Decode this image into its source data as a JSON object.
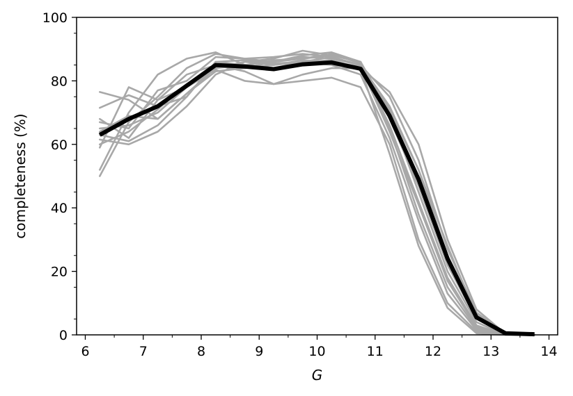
{
  "chart_data": {
    "type": "line",
    "xlabel": "G",
    "ylabel": "completeness (%)",
    "xlim": [
      5.85,
      14.15
    ],
    "ylim": [
      0,
      100
    ],
    "xticks": [
      6,
      7,
      8,
      9,
      10,
      11,
      12,
      13,
      14
    ],
    "yticks": [
      0,
      20,
      40,
      60,
      80,
      100
    ],
    "grid": false,
    "x": [
      6.25,
      6.75,
      7.25,
      7.75,
      8.25,
      8.75,
      9.25,
      9.75,
      10.25,
      10.75,
      11.25,
      11.75,
      12.25,
      12.75,
      13.25,
      13.75
    ],
    "mean_series": {
      "color": "#000000",
      "values": [
        63,
        68,
        72,
        78.5,
        85,
        84.5,
        83.7,
        85.2,
        85.8,
        83.8,
        69,
        49,
        24,
        5.5,
        0.5,
        0.2
      ]
    },
    "sample_series": {
      "color": "#a8a8a8",
      "lines": [
        [
          76.5,
          74,
          68,
          76,
          84,
          85,
          86,
          87.5,
          87,
          85,
          72,
          52,
          28,
          6,
          0.5,
          0
        ],
        [
          71.5,
          75.5,
          72,
          75,
          86,
          86.5,
          85.5,
          86,
          86.5,
          84,
          76.5,
          60,
          30,
          8,
          0.3,
          0
        ],
        [
          67,
          65,
          77,
          80,
          87.5,
          87,
          86,
          88,
          89,
          86,
          70,
          45,
          20,
          4,
          0,
          0
        ],
        [
          63,
          61,
          66,
          75,
          86,
          85,
          86.5,
          87,
          88,
          86,
          65,
          38,
          15,
          2,
          0,
          0
        ],
        [
          61.5,
          60,
          64,
          72,
          82,
          86,
          87,
          89.5,
          88,
          86,
          68,
          47,
          22,
          5,
          0.5,
          0
        ],
        [
          59,
          78,
          74,
          82,
          85,
          84,
          85,
          86,
          87.5,
          85,
          66,
          42,
          18,
          3,
          0,
          0
        ],
        [
          52,
          70,
          82,
          87,
          89,
          85,
          84,
          86,
          85,
          82,
          62,
          36,
          13,
          1.5,
          0,
          0
        ],
        [
          50,
          67,
          75,
          84,
          88.5,
          87,
          87.5,
          88.5,
          87.5,
          85,
          75,
          55,
          27,
          7,
          0.5,
          0
        ],
        [
          65,
          66,
          70,
          78,
          83.5,
          80,
          79,
          80,
          81,
          78,
          60,
          30,
          10,
          1,
          0,
          0
        ],
        [
          68,
          62,
          74,
          78,
          85,
          83,
          79,
          82,
          84,
          84,
          57,
          28,
          8.5,
          0.5,
          0,
          0
        ],
        [
          60,
          64,
          71,
          79,
          84,
          86,
          85,
          86.5,
          86,
          84.5,
          64,
          41,
          17,
          2.5,
          0,
          0
        ],
        [
          64,
          69,
          68,
          76,
          83,
          84,
          86,
          87,
          88.5,
          85.5,
          71,
          52,
          25,
          6.5,
          0.5,
          0
        ]
      ]
    }
  }
}
